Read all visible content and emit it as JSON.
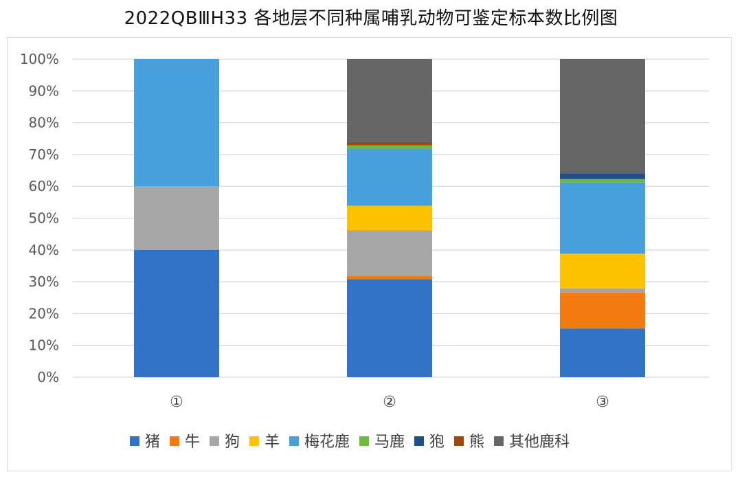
{
  "title": "2022QBⅢH33 各地层不同种属哺乳动物可鉴定标本数比例图",
  "chart_data": {
    "type": "bar",
    "stacked": "percent",
    "title": "2022QBⅢH33 各地层不同种属哺乳动物可鉴定标本数比例图",
    "categories": [
      "①",
      "②",
      "③"
    ],
    "ylim": [
      0,
      100
    ],
    "yticks": [
      "0%",
      "10%",
      "20%",
      "30%",
      "40%",
      "50%",
      "60%",
      "70%",
      "80%",
      "90%",
      "100%"
    ],
    "grid": true,
    "legend_position": "bottom",
    "series": [
      {
        "name": "猪",
        "color": "#3173C7",
        "values": [
          40,
          30.8,
          15.3
        ]
      },
      {
        "name": "牛",
        "color": "#F47A10",
        "values": [
          0,
          1.1,
          11.3
        ]
      },
      {
        "name": "狗",
        "color": "#A6A6A6",
        "values": [
          20,
          14.3,
          1.3
        ]
      },
      {
        "name": "羊",
        "color": "#FDC200",
        "values": [
          0,
          7.7,
          10.9
        ]
      },
      {
        "name": "梅花鹿",
        "color": "#47A0DC",
        "values": [
          40,
          17.9,
          22.4
        ]
      },
      {
        "name": "马鹿",
        "color": "#6FB93C",
        "values": [
          0,
          1.1,
          1.1
        ]
      },
      {
        "name": "狍",
        "color": "#1F4E8C",
        "values": [
          0,
          0,
          1.8
        ]
      },
      {
        "name": "熊",
        "color": "#9E480E",
        "values": [
          0,
          1.0,
          0
        ]
      },
      {
        "name": "其他鹿科",
        "color": "#666666",
        "values": [
          0,
          26.1,
          35.9
        ]
      }
    ]
  }
}
